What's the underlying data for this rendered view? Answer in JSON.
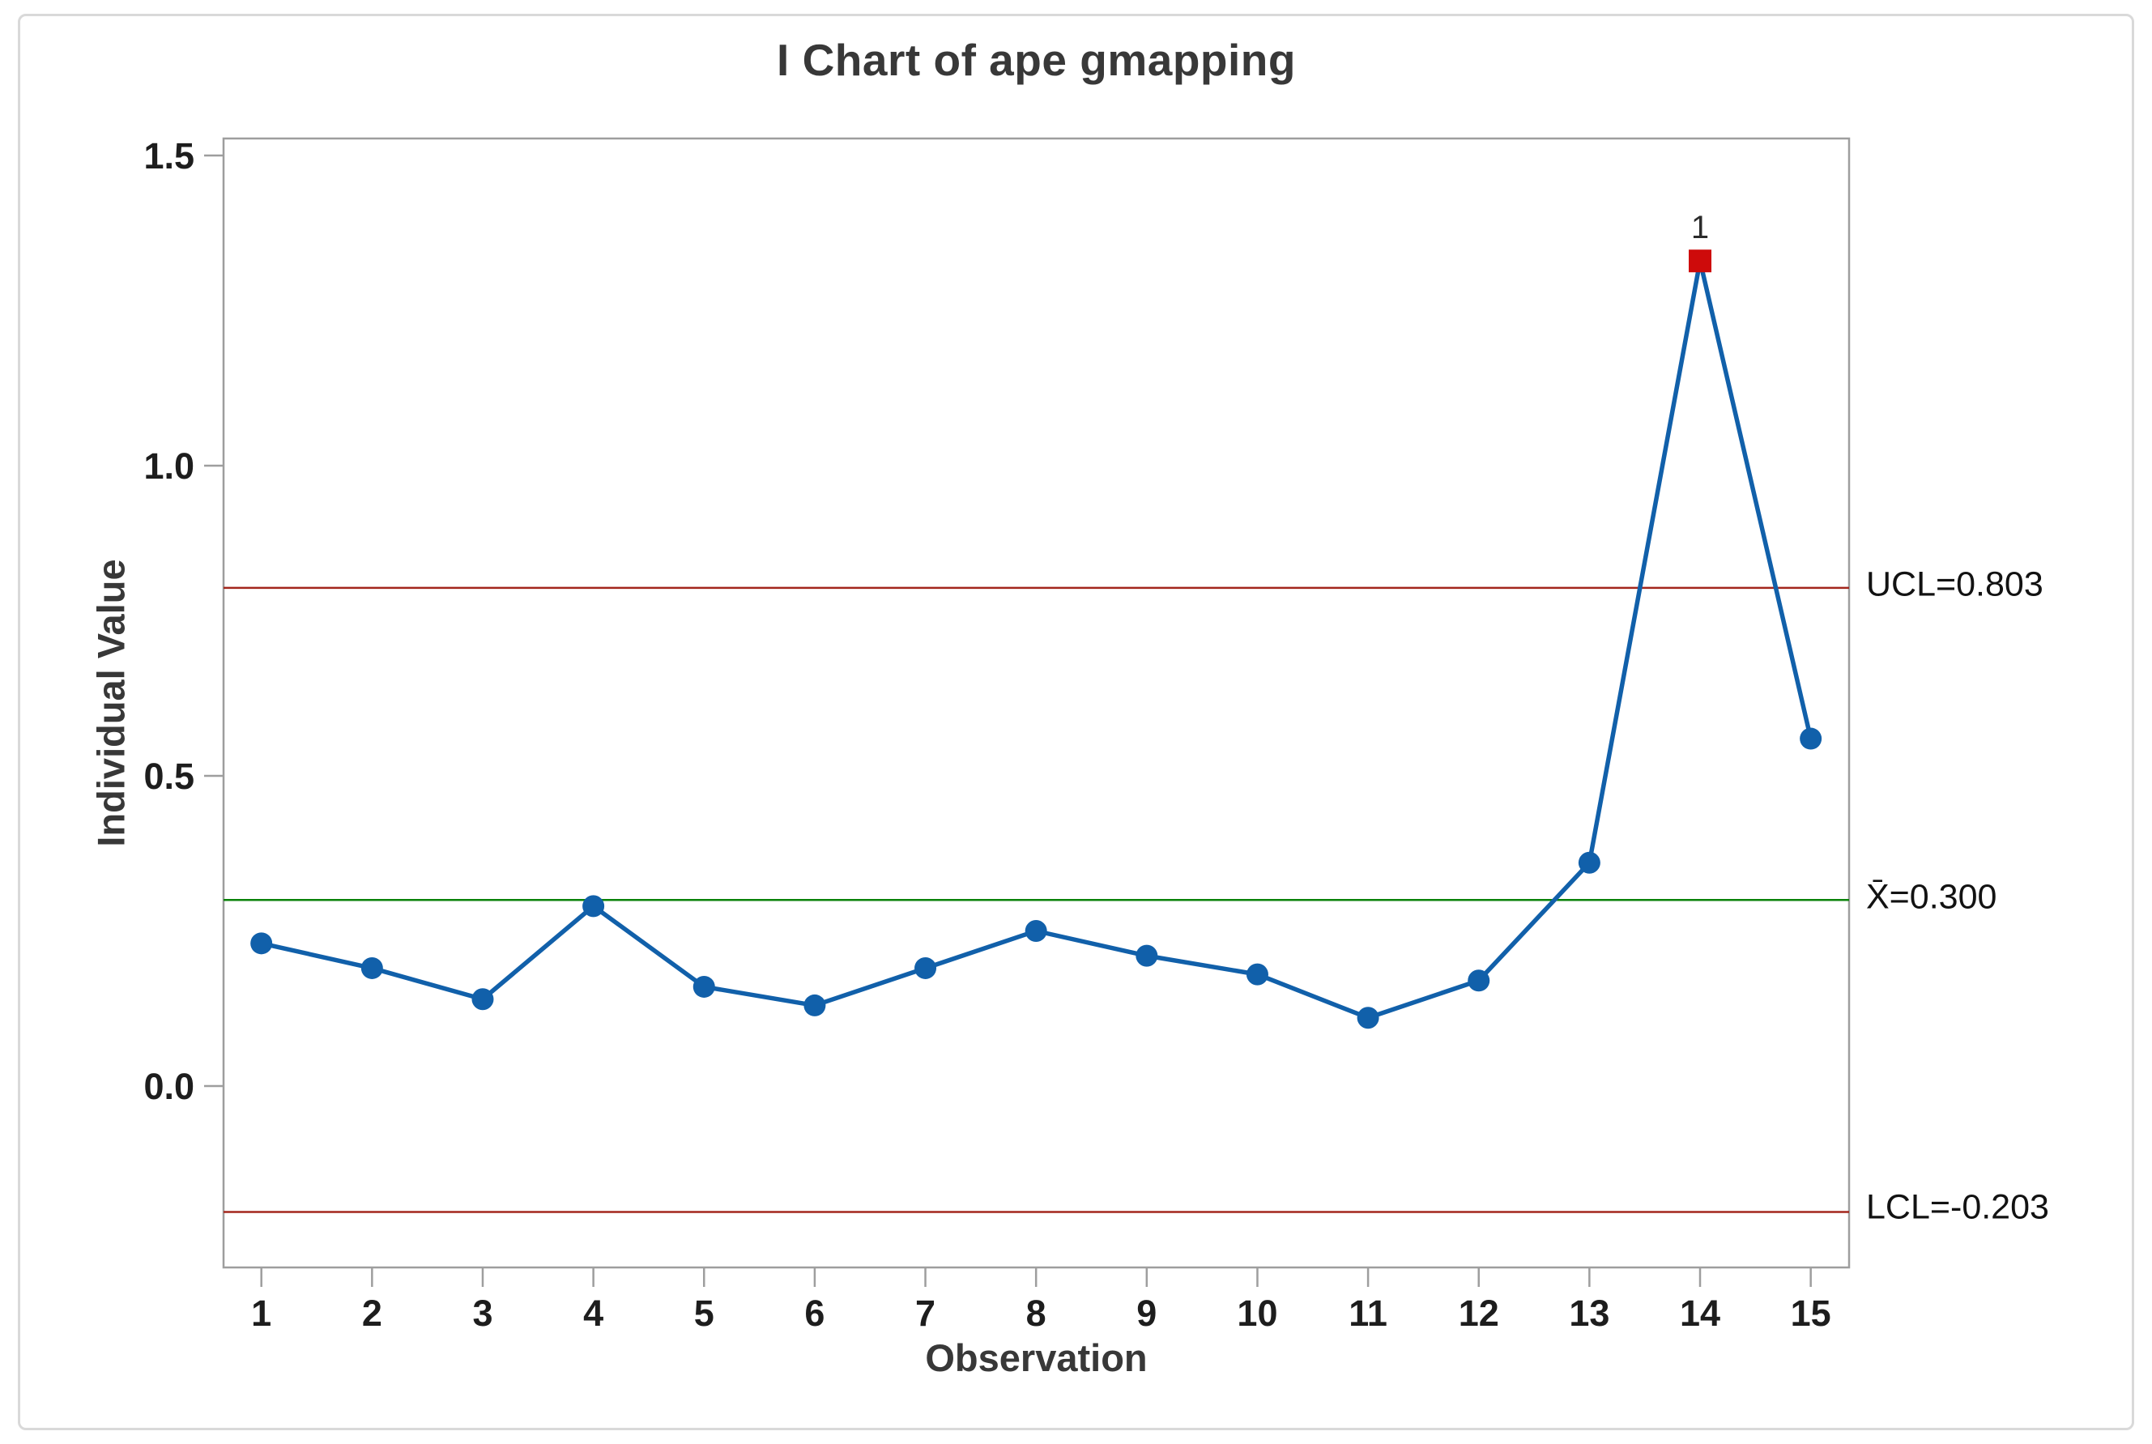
{
  "figure": {
    "title": "I Chart of ape gmapping",
    "x_axis_label": "Observation",
    "y_axis_label": "Individual Value"
  },
  "annotations": {
    "ucl_label": "UCL=0.803",
    "center_label": "X̄=0.300",
    "lcl_label": "LCL=-0.203",
    "flag_label": "1"
  },
  "chart_data": {
    "type": "line",
    "title": "I Chart of ape gmapping",
    "xlabel": "Observation",
    "ylabel": "Individual Value",
    "x": [
      1,
      2,
      3,
      4,
      5,
      6,
      7,
      8,
      9,
      10,
      11,
      12,
      13,
      14,
      15
    ],
    "values": [
      0.23,
      0.19,
      0.14,
      0.29,
      0.16,
      0.13,
      0.19,
      0.25,
      0.21,
      0.18,
      0.11,
      0.17,
      0.36,
      1.33,
      0.56
    ],
    "ucl": 0.803,
    "center": 0.3,
    "lcl": -0.203,
    "ucl_label": "UCL=0.803",
    "center_label": "X̄=0.300",
    "lcl_label": "LCL=-0.203",
    "out_of_control": [
      {
        "x": 14,
        "value": 1.33,
        "label": "1"
      }
    ],
    "xticks": [
      1,
      2,
      3,
      4,
      5,
      6,
      7,
      8,
      9,
      10,
      11,
      12,
      13,
      14,
      15
    ],
    "yticks": [
      0.0,
      0.5,
      1.0,
      1.5
    ],
    "ytick_labels": [
      "0.0",
      "0.5",
      "1.0",
      "1.5"
    ],
    "ylim": [
      -0.29,
      1.53
    ],
    "grid": false,
    "legend": "none",
    "marker": "circle",
    "flagged_marker": "square"
  },
  "colors": {
    "series_blue": "#1160AA",
    "limit_red": "#A3261C",
    "center_green": "#0A820A",
    "flag_red": "#CE0B0B",
    "heading_text": "#383838",
    "tick_text": "#1D1D1D",
    "limit_text": "#121212",
    "axis_gray": "#9E9E9E",
    "card_border": "#D9D9D9",
    "background": "#FFFFFF"
  }
}
